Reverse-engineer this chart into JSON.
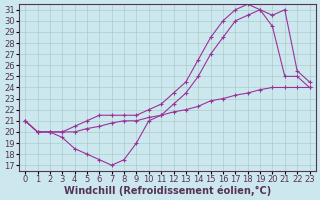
{
  "xlabel": "Windchill (Refroidissement éolien,°C)",
  "ylabel": "",
  "bg_color": "#cce8ee",
  "line_color": "#993399",
  "grid_color": "#aacccc",
  "xlim": [
    -0.5,
    23.5
  ],
  "ylim": [
    16.5,
    31.5
  ],
  "yticks": [
    17,
    18,
    19,
    20,
    21,
    22,
    23,
    24,
    25,
    26,
    27,
    28,
    29,
    30,
    31
  ],
  "xticks": [
    0,
    1,
    2,
    3,
    4,
    5,
    6,
    7,
    8,
    9,
    10,
    11,
    12,
    13,
    14,
    15,
    16,
    17,
    18,
    19,
    20,
    21,
    22,
    23
  ],
  "line1_x": [
    0,
    1,
    2,
    3,
    4,
    5,
    6,
    7,
    8,
    9,
    10,
    11,
    12,
    13,
    14,
    15,
    16,
    17,
    18,
    19,
    20,
    21,
    22,
    23
  ],
  "line1_y": [
    21.0,
    20.0,
    20.0,
    19.5,
    18.5,
    18.0,
    17.5,
    17.0,
    17.5,
    19.0,
    21.0,
    21.5,
    22.5,
    23.5,
    25.0,
    27.0,
    28.5,
    30.0,
    30.5,
    31.0,
    29.5,
    25.0,
    25.0,
    24.0
  ],
  "line2_x": [
    0,
    1,
    2,
    3,
    4,
    5,
    6,
    7,
    8,
    9,
    10,
    11,
    12,
    13,
    14,
    15,
    16,
    17,
    18,
    19,
    20,
    21,
    22,
    23
  ],
  "line2_y": [
    21.0,
    20.0,
    20.0,
    20.0,
    20.5,
    21.0,
    21.5,
    21.5,
    21.5,
    21.5,
    22.0,
    22.5,
    23.5,
    24.5,
    26.5,
    28.5,
    30.0,
    31.0,
    31.5,
    31.0,
    30.5,
    31.0,
    25.5,
    24.5
  ],
  "line3_x": [
    0,
    1,
    2,
    3,
    4,
    5,
    6,
    7,
    8,
    9,
    10,
    11,
    12,
    13,
    14,
    15,
    16,
    17,
    18,
    19,
    20,
    21,
    22,
    23
  ],
  "line3_y": [
    21.0,
    20.0,
    20.0,
    20.0,
    20.0,
    20.3,
    20.5,
    20.8,
    21.0,
    21.0,
    21.3,
    21.5,
    21.8,
    22.0,
    22.3,
    22.8,
    23.0,
    23.3,
    23.5,
    23.8,
    24.0,
    24.0,
    24.0,
    24.0
  ],
  "tick_fontsize": 6,
  "label_fontsize": 7
}
